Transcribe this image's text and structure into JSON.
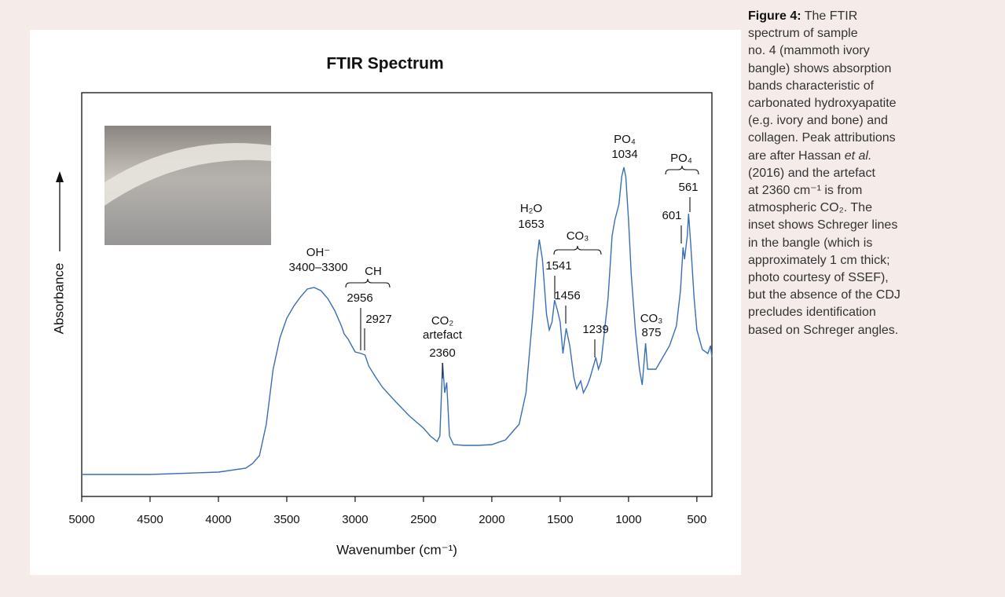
{
  "chart_data": {
    "type": "line",
    "title": "FTIR Spectrum",
    "x_label": "Wavenumber (cm⁻¹)",
    "y_label": "Absorbance",
    "x": [
      5000,
      4500,
      4000,
      3800,
      3750,
      3700,
      3650,
      3600,
      3550,
      3500,
      3450,
      3400,
      3350,
      3300,
      3250,
      3200,
      3150,
      3100,
      3080,
      3050,
      3000,
      2956,
      2927,
      2900,
      2850,
      2800,
      2700,
      2600,
      2500,
      2450,
      2400,
      2380,
      2360,
      2345,
      2330,
      2310,
      2280,
      2200,
      2100,
      2000,
      1900,
      1800,
      1750,
      1700,
      1670,
      1653,
      1630,
      1600,
      1580,
      1560,
      1541,
      1520,
      1500,
      1480,
      1456,
      1430,
      1400,
      1380,
      1350,
      1330,
      1300,
      1280,
      1239,
      1220,
      1200,
      1150,
      1120,
      1100,
      1070,
      1050,
      1034,
      1020,
      1000,
      980,
      950,
      920,
      900,
      875,
      860,
      800,
      750,
      700,
      650,
      620,
      601,
      590,
      570,
      561,
      545,
      520,
      500,
      460,
      420,
      400,
      390
    ],
    "series": [
      {
        "color": "#3a6eb5",
        "values": [
          28,
          28,
          31,
          36,
          42,
          52,
          92,
          162,
          202,
          227,
          242,
          254,
          264,
          266,
          262,
          252,
          237,
          217,
          207,
          200,
          184,
          182,
          180,
          166,
          152,
          139,
          120,
          102,
          87,
          77,
          70,
          77,
          170,
          132,
          145,
          77,
          66,
          65,
          65,
          66,
          72,
          92,
          132,
          232,
          302,
          327,
          302,
          232,
          212,
          222,
          250,
          237,
          222,
          182,
          214,
          192,
          152,
          137,
          147,
          132,
          142,
          152,
          177,
          162,
          172,
          252,
          332,
          352,
          372,
          407,
          419,
          407,
          352,
          282,
          212,
          162,
          142,
          195,
          162,
          162,
          177,
          192,
          217,
          262,
          317,
          302,
          332,
          360,
          322,
          252,
          212,
          187,
          182,
          192,
          177
        ]
      }
    ],
    "xlim": [
      5000,
      390
    ],
    "ylim": [
      0,
      514
    ],
    "xticks": [
      5000,
      4500,
      4000,
      3500,
      3000,
      2500,
      2000,
      1500,
      1000,
      500
    ],
    "annotations": [
      "OH⁻",
      "3400–3300",
      "CH",
      "2956",
      "2927",
      "CO₂",
      "artefact",
      "2360",
      "H₂O",
      "1653",
      "CO₃",
      "1541",
      "1456",
      "1239",
      "PO₄",
      "1034",
      "CO₃",
      "875",
      "PO₄",
      "561",
      "601"
    ]
  },
  "caption": {
    "label": "Figure 4:",
    "lines": [
      "The FTIR",
      "spectrum of sample",
      "no. 4 (mammoth ivory",
      "bangle) shows absorption",
      "bands characteristic of",
      "carbonated hydroxyapatite",
      "(e.g. ivory and bone) and",
      "collagen. Peak attributions",
      [
        "are after Hassan",
        "et al."
      ],
      "(2016) and the artefact",
      "at 2360 cm⁻¹ is from",
      "atmospheric CO₂. The",
      "inset shows Schreger lines",
      "in the bangle (which is",
      "approximately 1 cm thick;",
      "photo courtesy of SSEF),",
      "but the absence of the CDJ",
      "precludes identification",
      "based on Schreger angles."
    ]
  }
}
